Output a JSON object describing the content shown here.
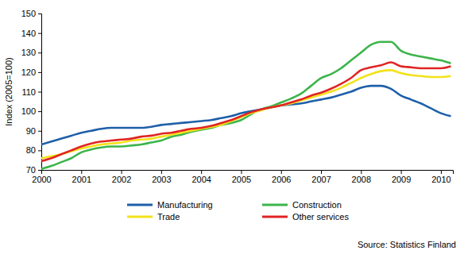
{
  "chart_data": {
    "type": "line",
    "y_label": "Index (2005=100)",
    "annotations": [
      "Source: Statistics Finland"
    ],
    "x": [
      2000,
      2000.25,
      2000.5,
      2000.75,
      2001,
      2001.25,
      2001.5,
      2001.75,
      2002,
      2002.25,
      2002.5,
      2002.75,
      2003,
      2003.25,
      2003.5,
      2003.75,
      2004,
      2004.25,
      2004.5,
      2004.75,
      2005,
      2005.25,
      2005.5,
      2005.75,
      2006,
      2006.25,
      2006.5,
      2006.75,
      2007,
      2007.25,
      2007.5,
      2007.75,
      2008,
      2008.25,
      2008.5,
      2008.75,
      2009,
      2009.25,
      2009.5,
      2009.75,
      2010,
      2010.25
    ],
    "series": [
      {
        "name": "Manufacturing",
        "color": "#1f5fa8",
        "values": [
          83,
          84.5,
          86,
          87.5,
          89,
          90,
          91,
          91.5,
          91.5,
          91.5,
          91.5,
          92,
          93,
          93.5,
          94,
          94.5,
          95,
          95.5,
          96.5,
          97.5,
          99,
          100,
          101,
          102,
          103,
          103.5,
          104,
          105,
          106,
          107,
          108.5,
          110,
          112,
          113,
          113,
          111.5,
          108,
          106,
          104,
          101.5,
          99,
          97.5
        ]
      },
      {
        "name": "Construction",
        "color": "#3cb44b",
        "values": [
          70.5,
          72,
          74,
          76,
          79,
          80.5,
          81.5,
          82,
          82,
          82.5,
          83,
          84,
          85,
          87,
          88,
          89.5,
          90.5,
          91.5,
          93,
          94,
          95.5,
          98.5,
          101,
          102.5,
          104.5,
          106.5,
          109,
          113,
          117,
          119,
          122,
          126,
          130,
          134,
          135.5,
          135.5,
          131,
          129,
          128,
          127,
          126,
          124.5
        ]
      },
      {
        "name": "Trade",
        "color": "#f2e21a",
        "values": [
          76,
          77,
          78,
          79.5,
          81,
          82,
          83,
          83.5,
          84,
          85,
          85.5,
          86,
          87,
          88,
          89,
          90,
          91,
          92,
          93,
          95,
          97,
          99,
          100.5,
          102,
          103,
          104,
          105.5,
          107,
          108.5,
          110,
          112,
          114.5,
          117,
          119,
          120.5,
          121,
          119.5,
          118.5,
          118,
          117.5,
          117.5,
          118
        ]
      },
      {
        "name": "Other services",
        "color": "#e02424",
        "values": [
          74.5,
          76,
          78,
          80,
          82,
          83.5,
          84.5,
          85,
          85.5,
          86,
          87,
          87.5,
          88.5,
          89,
          90,
          91,
          91.5,
          92.5,
          94,
          95.5,
          97.5,
          99.5,
          101,
          102,
          103,
          104.5,
          106,
          108,
          109.5,
          111.5,
          114,
          117,
          121,
          122.5,
          123.5,
          125,
          123,
          122.5,
          122,
          122,
          122,
          123
        ]
      }
    ],
    "xlim": [
      2000,
      2010.3
    ],
    "xticks": [
      2000,
      2001,
      2002,
      2003,
      2004,
      2005,
      2006,
      2007,
      2008,
      2009,
      2010
    ],
    "ylim": [
      70,
      150
    ],
    "yticks": [
      70,
      80,
      90,
      100,
      110,
      120,
      130,
      140,
      150
    ],
    "grid": false,
    "legend": "bottom"
  }
}
